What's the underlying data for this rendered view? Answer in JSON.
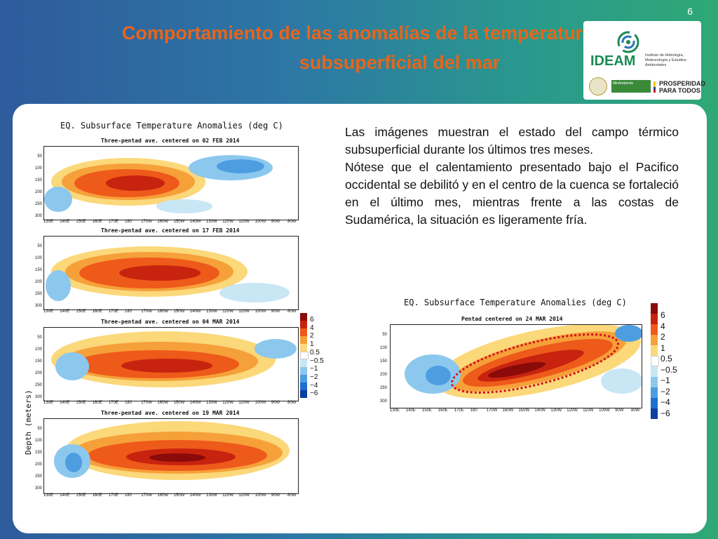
{
  "slide_number": "6",
  "title_line1": "Comportamiento de las anomalías de la temperatura",
  "title_line2": "subsuperficial del mar",
  "logos": {
    "ideam_name": "IDEAM",
    "ideam_subtitle": "Instituto de Hidrología, Meteorología y Estudios Ambientales",
    "ministry": "MinAmbiente",
    "prosperidad": "PROSPERIDAD PARA TODOS"
  },
  "description": {
    "paragraph1": "Las imágenes muestran el estado del campo térmico subsuperficial durante los últimos tres meses.",
    "paragraph2": "Nótese que el calentamiento presentado bajo el Pacifico occidental se debilitó y en el centro de la cuenca se fortaleció en el último mes, mientras frente a las costas de Sudamérica, la situación es ligeramente fría."
  },
  "left_figure": {
    "title": "EQ. Subsurface Temperature Anomalies (deg C)",
    "y_axis_label": "Depth (meters)",
    "depth_ticks": [
      "50",
      "100",
      "150",
      "200",
      "250",
      "300"
    ],
    "lon_ticks": [
      "130E",
      "140E",
      "150E",
      "160E",
      "170E",
      "180",
      "170W",
      "160W",
      "150W",
      "140W",
      "130W",
      "120W",
      "110W",
      "100W",
      "90W",
      "80W"
    ],
    "panels": [
      {
        "subtitle": "Three-pentad ave. centered on 02 FEB 2014"
      },
      {
        "subtitle": "Three-pentad ave. centered on 17 FEB 2014"
      },
      {
        "subtitle": "Three-pentad ave. centered on 04 MAR 2014"
      },
      {
        "subtitle": "Three-pentad ave. centered on 19 MAR 2014"
      }
    ],
    "colorbar_labels": [
      "6",
      "4",
      "2",
      "1",
      "0.5",
      "−0.5",
      "−1",
      "−2",
      "−4",
      "−6"
    ]
  },
  "right_figure": {
    "title": "EQ. Subsurface Temperature Anomalies (deg C)",
    "subtitle": "Pentad centered on 24 MAR 2014",
    "depth_ticks": [
      "50",
      "100",
      "150",
      "200",
      "250",
      "300"
    ],
    "lon_ticks": [
      "130E",
      "140E",
      "150E",
      "160E",
      "170E",
      "180",
      "170W",
      "160W",
      "150W",
      "140W",
      "130W",
      "120W",
      "110W",
      "100W",
      "90W",
      "80W"
    ],
    "colorbar_labels": [
      "6",
      "4",
      "2",
      "1",
      "0.5",
      "−0.5",
      "−1",
      "−2",
      "−4",
      "−6"
    ]
  },
  "colors": {
    "title": "#e8651a",
    "anom_6": "#8b0a0a",
    "anom_4": "#c8230f",
    "anom_2": "#ee5a1a",
    "anom_1": "#f6a03a",
    "anom_05": "#fbd87a",
    "anom_m05": "#c9e6f5",
    "anom_m1": "#8cc8ee",
    "anom_m2": "#4d9ee0",
    "anom_m4": "#1f6fd0",
    "anom_m6": "#0b3fa0",
    "highlight_ellipse": "#d0121b"
  }
}
